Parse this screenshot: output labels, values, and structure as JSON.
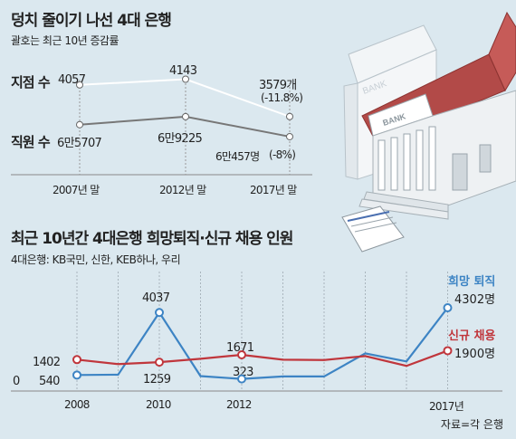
{
  "chart_data": [
    {
      "type": "line",
      "title": "덩치 줄이기 나선 4대 은행",
      "subtitle": "괄호는 최근 10년 증감률",
      "categories": [
        "2007년 말",
        "2012년 말",
        "2017년 말"
      ],
      "series": [
        {
          "name": "지점 수",
          "values": [
            4057,
            4143,
            3579
          ],
          "labels": [
            "4057",
            "4143",
            "3579개"
          ],
          "change": "(-11.8%)",
          "color": "#ffffff"
        },
        {
          "name": "직원 수",
          "values": [
            65707,
            69225,
            60457
          ],
          "labels": [
            "6만5707",
            "6만9225",
            "6만457명"
          ],
          "change": "(-8%)",
          "color": "#777777"
        }
      ]
    },
    {
      "type": "line",
      "title": "최근 10년간 4대은행 희망퇴직·신규 채용 인원",
      "subtitle": "4대은행: KB국민, 신한, KEB하나, 우리",
      "x": [
        2008,
        2009,
        2010,
        2011,
        2012,
        2013,
        2014,
        2015,
        2016,
        2017
      ],
      "x_tick_labels": [
        "2008",
        "2010",
        "2012",
        "2017년"
      ],
      "y_zero_label": "0",
      "series": [
        {
          "name": "희망 퇴직",
          "values": [
            540,
            560,
            4037,
            480,
            323,
            460,
            460,
            1750,
            1300,
            4302
          ],
          "end_label": "4302명",
          "labels": [
            "540",
            "4037",
            "323"
          ],
          "color": "#3d84c4"
        },
        {
          "name": "신규 채용",
          "values": [
            1402,
            1150,
            1259,
            1450,
            1671,
            1400,
            1380,
            1600,
            1050,
            1900
          ],
          "end_label": "1900명",
          "labels": [
            "1402",
            "1259",
            "1671"
          ],
          "color": "#c0363c"
        }
      ],
      "source": "자료=각 은행"
    }
  ],
  "illustration": {
    "sign_text": "BANK"
  }
}
